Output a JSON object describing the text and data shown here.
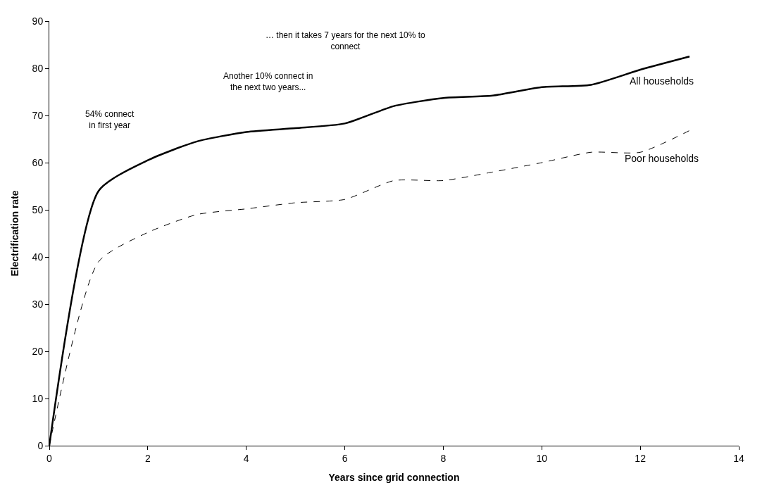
{
  "chart_data": {
    "type": "line",
    "xlabel": "Years since grid connection",
    "ylabel": "Electrification rate",
    "x": [
      0,
      1,
      2,
      3,
      4,
      5,
      6,
      7,
      8,
      9,
      10,
      11,
      12,
      13
    ],
    "series": [
      {
        "name": "All households",
        "color": "#000000",
        "line_style": "solid",
        "values": [
          0,
          54,
          60.5,
          64.5,
          66.5,
          67.3,
          68.3,
          72,
          73.7,
          74.2,
          76,
          76.5,
          79.7,
          82.5
        ]
      },
      {
        "name": "Poor households",
        "color": "#000000",
        "line_style": "dashed",
        "values": [
          0,
          39,
          45.2,
          49,
          50.2,
          51.5,
          52.2,
          56.2,
          56.2,
          58,
          60,
          62.2,
          62.2,
          66.8
        ]
      }
    ],
    "xlim": [
      0,
      14
    ],
    "xticks": [
      0,
      2,
      4,
      6,
      8,
      10,
      12,
      14
    ],
    "ylim": [
      0,
      90
    ],
    "yticks": [
      0,
      10,
      20,
      30,
      40,
      50,
      60,
      70,
      80,
      90
    ],
    "legend": false,
    "marker": "none",
    "annotations": [
      "54% connect\nin first year",
      "Another 10% connect in\nthe next two years...",
      "… then it takes 7 years for the next 10% to\nconnect"
    ]
  }
}
